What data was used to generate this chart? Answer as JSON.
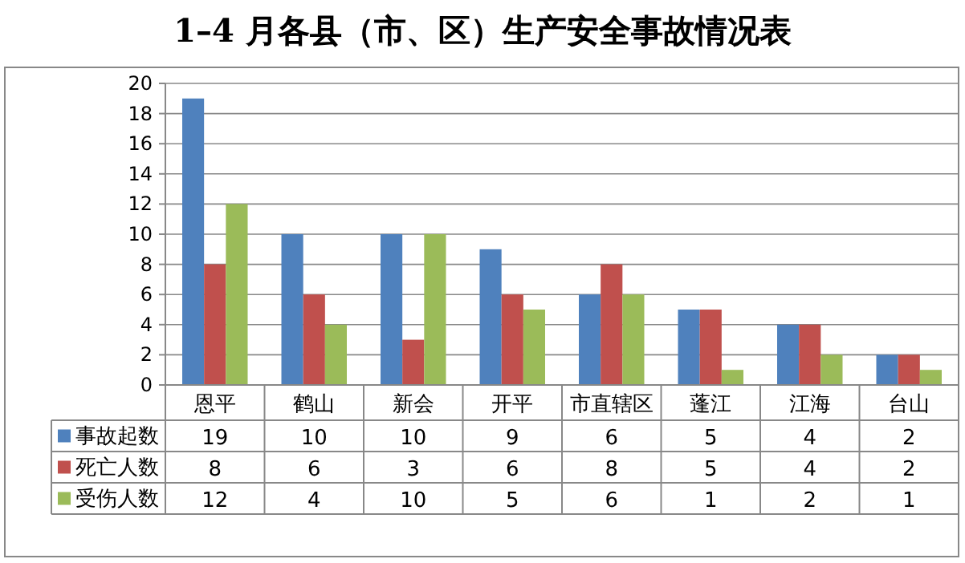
{
  "chart_data": {
    "type": "bar",
    "title": "1–4 月各县（市、区）生产安全事故情况表",
    "categories": [
      "恩平",
      "鹤山",
      "新会",
      "开平",
      "市直辖区",
      "蓬江",
      "江海",
      "台山"
    ],
    "series": [
      {
        "name": "事故起数",
        "color": "#4f81bd",
        "values": [
          19,
          10,
          10,
          9,
          6,
          5,
          4,
          2
        ]
      },
      {
        "name": "死亡人数",
        "color": "#c0504d",
        "values": [
          8,
          6,
          3,
          6,
          8,
          5,
          4,
          2
        ]
      },
      {
        "name": "受伤人数",
        "color": "#9bbb59",
        "values": [
          12,
          4,
          10,
          5,
          6,
          1,
          2,
          1
        ]
      }
    ],
    "ylim": [
      0,
      20
    ],
    "yticks": [
      0,
      2,
      4,
      6,
      8,
      10,
      12,
      14,
      16,
      18,
      20
    ],
    "grid": "y",
    "legend": "bottom",
    "data_labels": true
  }
}
